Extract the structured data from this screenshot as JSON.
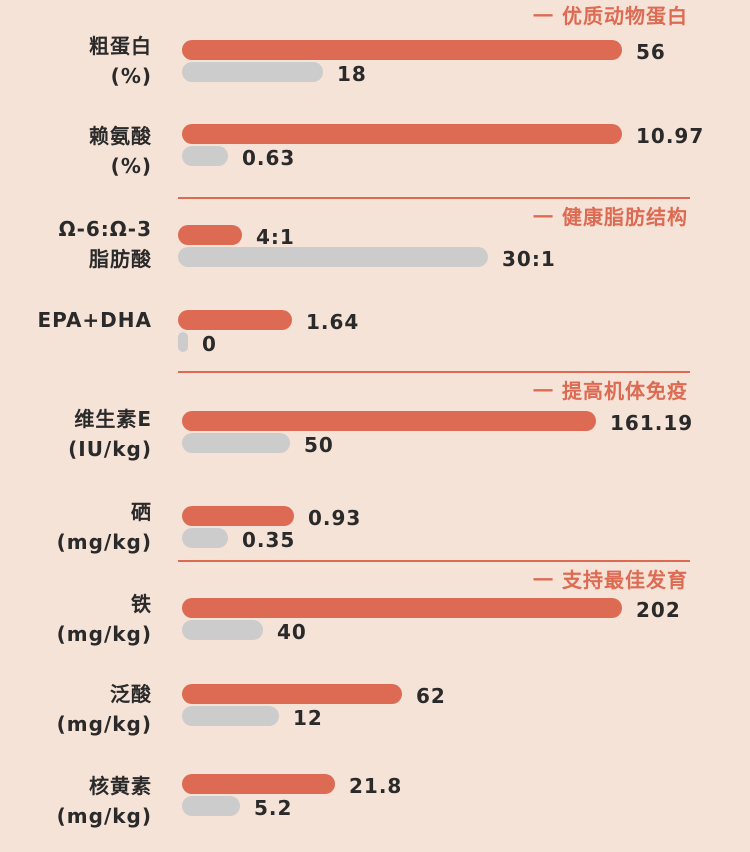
{
  "colors": {
    "background": "#f6e3d7",
    "accent": "#dd6b53",
    "comparison": "#cccccc"
  },
  "sections": [
    {
      "title": "一 优质动物蛋白"
    },
    {
      "title": "一 健康脂肪结构"
    },
    {
      "title": "一 提高机体免疫"
    },
    {
      "title": "一 支持最佳发育"
    }
  ],
  "rows": [
    {
      "line1": "粗蛋白",
      "line2": "(%)",
      "primary": {
        "label": "56"
      },
      "secondary": {
        "label": "18"
      }
    },
    {
      "line1": "赖氨酸",
      "line2": "(%)",
      "primary": {
        "label": "10.97"
      },
      "secondary": {
        "label": "0.63"
      }
    },
    {
      "line1": "Ω-6:Ω-3",
      "line2": "脂肪酸",
      "primary": {
        "label": "4:1"
      },
      "secondary": {
        "label": "30:1"
      }
    },
    {
      "line1": "EPA+DHA",
      "line2": "",
      "primary": {
        "label": "1.64"
      },
      "secondary": {
        "label": "0"
      }
    },
    {
      "line1": "维生素E",
      "line2": "(IU/kg)",
      "primary": {
        "label": "161.19"
      },
      "secondary": {
        "label": "50"
      }
    },
    {
      "line1": "硒",
      "line2": "(mg/kg)",
      "primary": {
        "label": "0.93"
      },
      "secondary": {
        "label": "0.35"
      }
    },
    {
      "line1": "铁",
      "line2": "(mg/kg)",
      "primary": {
        "label": "202"
      },
      "secondary": {
        "label": "40"
      }
    },
    {
      "line1": "泛酸",
      "line2": "(mg/kg)",
      "primary": {
        "label": "62"
      },
      "secondary": {
        "label": "12"
      }
    },
    {
      "line1": "核黄素",
      "line2": "(mg/kg)",
      "primary": {
        "label": "21.8"
      },
      "secondary": {
        "label": "5.2"
      }
    }
  ],
  "chart_data": {
    "type": "bar",
    "orientation": "horizontal",
    "categories": [
      "粗蛋白 (%)",
      "赖氨酸 (%)",
      "Ω-6:Ω-3 脂肪酸",
      "EPA+DHA",
      "维生素E (IU/kg)",
      "硒 (mg/kg)",
      "铁 (mg/kg)",
      "泛酸 (mg/kg)",
      "核黄素 (mg/kg)"
    ],
    "series": [
      {
        "values": [
          56,
          10.97,
          4,
          1.64,
          161.19,
          0.93,
          202,
          62,
          21.8
        ],
        "color": "#dd6b53"
      },
      {
        "values": [
          18,
          0.63,
          30,
          0,
          50,
          0.35,
          40,
          12,
          5.2
        ],
        "color": "#cccccc"
      }
    ],
    "notes": "Ω-6:Ω-3 values are ratios 4:1 and 30:1; each metric is drawn on its own scale.",
    "grid": false,
    "legend": "none"
  }
}
